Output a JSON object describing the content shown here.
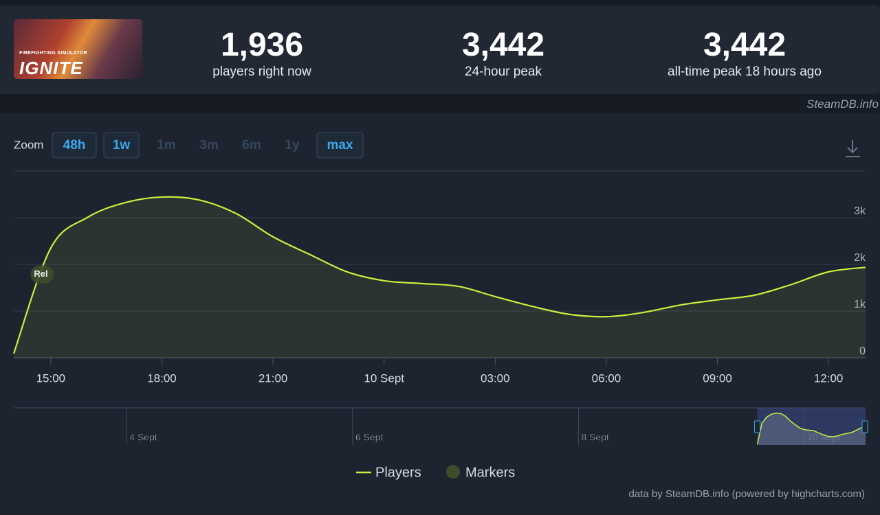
{
  "header": {
    "game": {
      "subtitle": "FIREFIGHTING SIMULATOR",
      "title": "IGNITE"
    },
    "stats": [
      {
        "value": "1,936",
        "label": "players right now"
      },
      {
        "value": "3,442",
        "label": "24-hour peak"
      },
      {
        "value": "3,442",
        "label": "all-time peak 18 hours ago"
      }
    ],
    "source": "SteamDB.info"
  },
  "zoom": {
    "label": "Zoom",
    "buttons": [
      "48h",
      "1w",
      "1m",
      "3m",
      "6m",
      "1y",
      "max"
    ],
    "enabled": [
      true,
      true,
      false,
      false,
      false,
      false,
      true
    ]
  },
  "chart_data": {
    "type": "line",
    "x": [
      14,
      15,
      16,
      17,
      18,
      19,
      20,
      21,
      22,
      23,
      24,
      25,
      26,
      27,
      28,
      29,
      30,
      31,
      32,
      33,
      34,
      35,
      36,
      37
    ],
    "xlim": [
      14,
      37
    ],
    "xticks": [
      {
        "value": 15,
        "label": "15:00"
      },
      {
        "value": 18,
        "label": "18:00"
      },
      {
        "value": 21,
        "label": "21:00"
      },
      {
        "value": 24,
        "label": "10 Sept"
      },
      {
        "value": 27,
        "label": "03:00"
      },
      {
        "value": 30,
        "label": "06:00"
      },
      {
        "value": 33,
        "label": "09:00"
      },
      {
        "value": 36,
        "label": "12:00"
      }
    ],
    "ylim": [
      0,
      4000
    ],
    "yticks": [
      {
        "value": 0,
        "label": "0"
      },
      {
        "value": 1000,
        "label": "1k"
      },
      {
        "value": 2000,
        "label": "2k"
      },
      {
        "value": 3000,
        "label": "3k"
      }
    ],
    "grid": true,
    "series": [
      {
        "name": "Players",
        "color": "#c8f03c",
        "values": [
          90,
          2350,
          3010,
          3320,
          3442,
          3380,
          3090,
          2590,
          2210,
          1840,
          1650,
          1590,
          1530,
          1310,
          1100,
          930,
          880,
          970,
          1130,
          1240,
          1340,
          1570,
          1840,
          1936
        ]
      }
    ],
    "annotations": [
      {
        "text": "Rel",
        "x": 14.75
      }
    ],
    "markers_legend": {
      "name": "Markers",
      "color": "#3e4d2c"
    },
    "navigator": {
      "xlim": [
        -144,
        37
      ],
      "xticks": [
        {
          "value": -120,
          "label": "4 Sept"
        },
        {
          "value": -72,
          "label": "6 Sept"
        },
        {
          "value": -24,
          "label": "8 Sept"
        },
        {
          "value": 24,
          "label": "10 Sept"
        }
      ]
    },
    "credits": "data by SteamDB.info (powered by highcharts.com)"
  }
}
